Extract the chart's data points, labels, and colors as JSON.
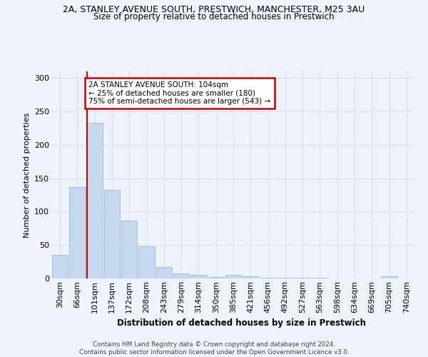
{
  "title1": "2A, STANLEY AVENUE SOUTH, PRESTWICH, MANCHESTER, M25 3AU",
  "title2": "Size of property relative to detached houses in Prestwich",
  "xlabel": "Distribution of detached houses by size in Prestwich",
  "ylabel": "Number of detached properties",
  "bar_labels": [
    "30sqm",
    "66sqm",
    "101sqm",
    "137sqm",
    "172sqm",
    "208sqm",
    "243sqm",
    "279sqm",
    "314sqm",
    "350sqm",
    "385sqm",
    "421sqm",
    "456sqm",
    "492sqm",
    "527sqm",
    "563sqm",
    "598sqm",
    "634sqm",
    "669sqm",
    "705sqm",
    "740sqm"
  ],
  "bar_values": [
    35,
    137,
    233,
    133,
    87,
    48,
    17,
    7,
    5,
    2,
    5,
    3,
    1,
    1,
    1,
    1,
    0,
    0,
    0,
    3,
    0
  ],
  "bar_color": "#c5d8ef",
  "bar_edge_color": "#9ab8d8",
  "property_line_x": 2,
  "property_sqm": 104,
  "annotation_line1": "2A STANLEY AVENUE SOUTH: 104sqm",
  "annotation_line2": "← 25% of detached houses are smaller (180)",
  "annotation_line3": "75% of semi-detached houses are larger (543) →",
  "annotation_box_color": "#ffffff",
  "annotation_edge_color": "#cc0000",
  "vline_color": "#cc0000",
  "background_color": "#eef2fa",
  "grid_color": "#d8e0ee",
  "footer_line1": "Contains HM Land Registry data © Crown copyright and database right 2024.",
  "footer_line2": "Contains public sector information licensed under the Open Government Licence v3.0.",
  "ylim": [
    0,
    310
  ],
  "yticks": [
    0,
    50,
    100,
    150,
    200,
    250,
    300
  ]
}
